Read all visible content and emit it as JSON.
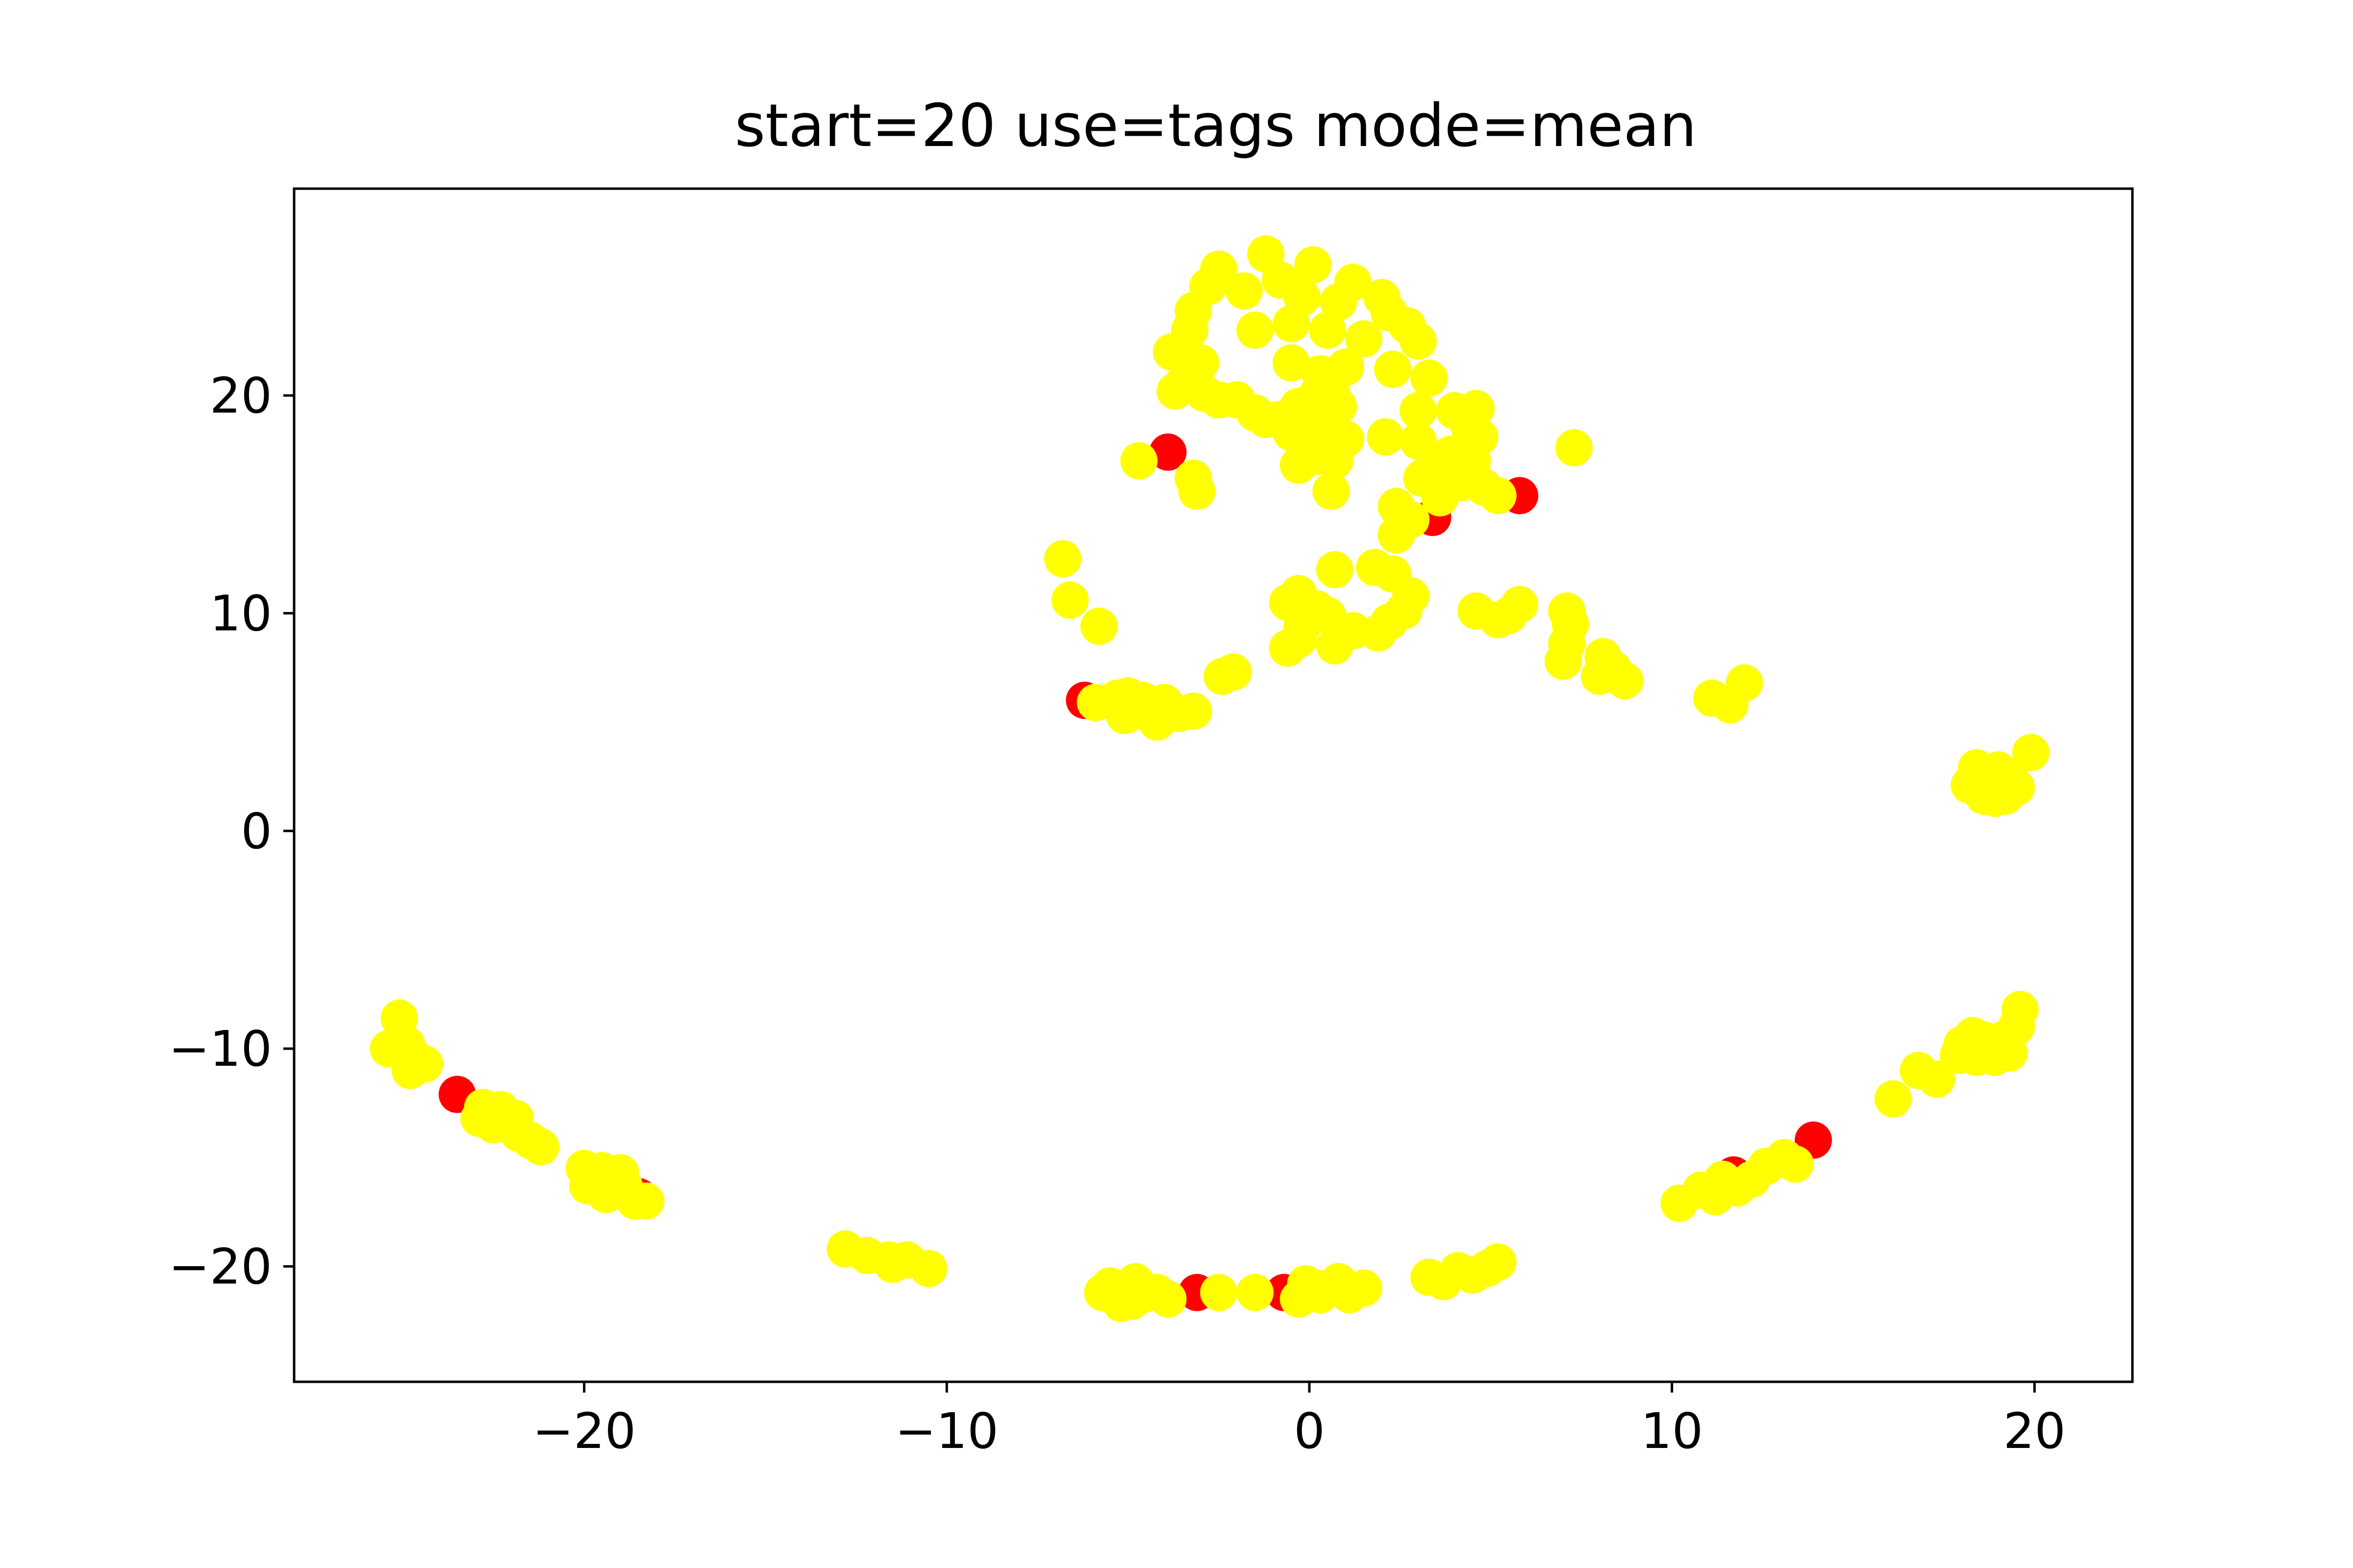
{
  "chart_data": {
    "type": "scatter",
    "title": "start=20 use=tags mode=mean",
    "xlabel": "",
    "ylabel": "",
    "xlim": [
      -28,
      22.7
    ],
    "ylim": [
      -25.3,
      29.5
    ],
    "xticks": [
      -20,
      -10,
      0,
      10,
      20
    ],
    "yticks": [
      -20,
      -10,
      0,
      10,
      20
    ],
    "xtick_labels": [
      "−20",
      "−10",
      "0",
      "10",
      "20"
    ],
    "ytick_labels": [
      "−20",
      "−10",
      "0",
      "10",
      "20"
    ],
    "grid": false,
    "colors": {
      "red": "#ff0000",
      "yellow": "#ffff00",
      "axes": "#000000"
    },
    "series": [
      {
        "color": "#ff0000",
        "points": [
          [
            -3.9,
            17.4
          ],
          [
            3.4,
            14.4
          ],
          [
            5.8,
            15.4
          ],
          [
            -6.2,
            6.0
          ],
          [
            -23.5,
            -12.1
          ],
          [
            -18.5,
            -16.8
          ],
          [
            -0.7,
            -21.2
          ],
          [
            -3.1,
            -21.2
          ],
          [
            11.7,
            -15.8
          ],
          [
            13.9,
            -14.2
          ]
        ]
      },
      {
        "color": "#ffff00",
        "points": [
          [
            -1.2,
            26.5
          ],
          [
            0.1,
            26.0
          ],
          [
            1.2,
            25.2
          ],
          [
            -2.5,
            25.8
          ],
          [
            -2.8,
            25.0
          ],
          [
            -1.8,
            24.8
          ],
          [
            -0.8,
            25.3
          ],
          [
            -0.2,
            24.5
          ],
          [
            0.8,
            24.3
          ],
          [
            2.0,
            24.5
          ],
          [
            2.2,
            23.8
          ],
          [
            -3.2,
            23.9
          ],
          [
            -3.3,
            23.0
          ],
          [
            -1.5,
            23.0
          ],
          [
            -0.5,
            23.3
          ],
          [
            0.5,
            23.0
          ],
          [
            1.5,
            22.6
          ],
          [
            2.7,
            23.2
          ],
          [
            3.0,
            22.5
          ],
          [
            -3.8,
            22.0
          ],
          [
            -3.0,
            21.5
          ],
          [
            -0.5,
            21.5
          ],
          [
            0.3,
            21.0
          ],
          [
            1.0,
            21.3
          ],
          [
            -3.5,
            20.5
          ],
          [
            -3.7,
            20.2
          ],
          [
            -2.9,
            20.1
          ],
          [
            -2.5,
            19.8
          ],
          [
            -2.0,
            19.8
          ],
          [
            -1.5,
            19.2
          ],
          [
            -1.2,
            18.9
          ],
          [
            -0.8,
            18.9
          ],
          [
            -0.5,
            18.3
          ],
          [
            0.0,
            18.5
          ],
          [
            0.5,
            18.7
          ],
          [
            0.8,
            19.5
          ],
          [
            0.2,
            20.0
          ],
          [
            0.6,
            20.3
          ],
          [
            -0.3,
            19.5
          ],
          [
            1.0,
            18.0
          ],
          [
            0.7,
            17.0
          ],
          [
            0.2,
            17.2
          ],
          [
            -0.3,
            16.8
          ],
          [
            0.6,
            15.6
          ],
          [
            2.3,
            21.2
          ],
          [
            3.3,
            20.8
          ],
          [
            3.0,
            19.3
          ],
          [
            2.1,
            18.1
          ],
          [
            3.0,
            17.9
          ],
          [
            4.0,
            19.3
          ],
          [
            4.6,
            19.4
          ],
          [
            4.4,
            18.6
          ],
          [
            4.7,
            18.1
          ],
          [
            3.9,
            17.3
          ],
          [
            4.5,
            17.0
          ],
          [
            3.4,
            16.8
          ],
          [
            3.8,
            16.3
          ],
          [
            3.1,
            16.2
          ],
          [
            4.2,
            16.0
          ],
          [
            3.6,
            15.3
          ],
          [
            2.4,
            14.9
          ],
          [
            5.2,
            15.4
          ],
          [
            4.8,
            15.8
          ],
          [
            2.4,
            13.6
          ],
          [
            2.8,
            14.3
          ],
          [
            7.3,
            17.6
          ],
          [
            -4.7,
            17.0
          ],
          [
            -3.2,
            16.2
          ],
          [
            -3.1,
            15.6
          ],
          [
            -6.8,
            12.5
          ],
          [
            -6.6,
            10.6
          ],
          [
            -5.8,
            9.4
          ],
          [
            0.7,
            12.0
          ],
          [
            1.8,
            12.1
          ],
          [
            2.3,
            11.8
          ],
          [
            2.8,
            10.8
          ],
          [
            2.6,
            10.1
          ],
          [
            2.2,
            9.6
          ],
          [
            1.9,
            9.1
          ],
          [
            -0.3,
            10.9
          ],
          [
            -0.6,
            10.5
          ],
          [
            0.2,
            10.2
          ],
          [
            0.5,
            9.9
          ],
          [
            -0.2,
            9.4
          ],
          [
            -0.6,
            8.4
          ],
          [
            -0.3,
            8.8
          ],
          [
            0.7,
            8.5
          ],
          [
            1.2,
            9.2
          ],
          [
            4.6,
            10.1
          ],
          [
            5.2,
            9.7
          ],
          [
            5.8,
            10.4
          ],
          [
            5.5,
            9.9
          ],
          [
            7.1,
            10.1
          ],
          [
            7.2,
            9.5
          ],
          [
            7.1,
            8.6
          ],
          [
            7.0,
            7.8
          ],
          [
            8.1,
            8.0
          ],
          [
            8.4,
            7.4
          ],
          [
            8.0,
            7.1
          ],
          [
            8.7,
            6.9
          ],
          [
            11.1,
            6.1
          ],
          [
            11.6,
            5.8
          ],
          [
            12.0,
            6.8
          ],
          [
            -2.1,
            7.3
          ],
          [
            -2.4,
            7.1
          ],
          [
            -5.9,
            5.9
          ],
          [
            -5.3,
            6.1
          ],
          [
            -5.0,
            6.2
          ],
          [
            -4.6,
            6.0
          ],
          [
            -4.3,
            5.8
          ],
          [
            -4.0,
            5.9
          ],
          [
            -4.7,
            5.5
          ],
          [
            -5.1,
            5.3
          ],
          [
            -3.6,
            5.4
          ],
          [
            -4.2,
            5.0
          ],
          [
            -3.2,
            5.5
          ],
          [
            18.4,
            2.9
          ],
          [
            18.7,
            2.5
          ],
          [
            19.0,
            2.8
          ],
          [
            19.3,
            2.5
          ],
          [
            18.5,
            1.9
          ],
          [
            18.9,
            1.5
          ],
          [
            19.2,
            1.6
          ],
          [
            19.5,
            2.0
          ],
          [
            18.2,
            2.1
          ],
          [
            18.6,
            1.6
          ],
          [
            19.9,
            3.6
          ],
          [
            -25.1,
            -8.6
          ],
          [
            -25.4,
            -10.0
          ],
          [
            -24.9,
            -9.8
          ],
          [
            -24.7,
            -10.4
          ],
          [
            -24.4,
            -10.7
          ],
          [
            -24.8,
            -11.0
          ],
          [
            -22.8,
            -12.7
          ],
          [
            -22.3,
            -12.8
          ],
          [
            -22.9,
            -13.2
          ],
          [
            -22.5,
            -13.5
          ],
          [
            -21.9,
            -13.2
          ],
          [
            -21.8,
            -13.9
          ],
          [
            -21.5,
            -14.2
          ],
          [
            -21.2,
            -14.5
          ],
          [
            -20.0,
            -15.5
          ],
          [
            -19.7,
            -15.9
          ],
          [
            -19.9,
            -16.3
          ],
          [
            -19.4,
            -16.7
          ],
          [
            -19.0,
            -15.7
          ],
          [
            -19.5,
            -15.6
          ],
          [
            -18.9,
            -16.3
          ],
          [
            -19.2,
            -16.5
          ],
          [
            -18.6,
            -17.0
          ],
          [
            -18.3,
            -17.0
          ],
          [
            -12.8,
            -19.2
          ],
          [
            -12.2,
            -19.5
          ],
          [
            -11.6,
            -19.7
          ],
          [
            -11.1,
            -19.7
          ],
          [
            -11.5,
            -19.9
          ],
          [
            -10.5,
            -20.1
          ],
          [
            -5.7,
            -21.2
          ],
          [
            -5.5,
            -20.9
          ],
          [
            -5.3,
            -21.4
          ],
          [
            -5.0,
            -21.1
          ],
          [
            -4.8,
            -20.7
          ],
          [
            -4.6,
            -21.3
          ],
          [
            -4.2,
            -21.2
          ],
          [
            -3.9,
            -21.5
          ],
          [
            -5.2,
            -21.7
          ],
          [
            -4.9,
            -21.6
          ],
          [
            -2.5,
            -21.2
          ],
          [
            -1.5,
            -21.2
          ],
          [
            -0.1,
            -20.8
          ],
          [
            0.3,
            -21.3
          ],
          [
            0.6,
            -21.0
          ],
          [
            0.8,
            -20.7
          ],
          [
            1.1,
            -21.3
          ],
          [
            1.5,
            -21.0
          ],
          [
            -0.3,
            -21.5
          ],
          [
            0.2,
            -21.0
          ],
          [
            3.3,
            -20.5
          ],
          [
            3.7,
            -20.7
          ],
          [
            4.1,
            -20.2
          ],
          [
            4.5,
            -20.4
          ],
          [
            4.9,
            -20.1
          ],
          [
            5.2,
            -19.8
          ],
          [
            10.2,
            -17.1
          ],
          [
            10.8,
            -16.5
          ],
          [
            11.2,
            -16.8
          ],
          [
            11.4,
            -16.0
          ],
          [
            11.8,
            -16.4
          ],
          [
            12.2,
            -16.0
          ],
          [
            12.6,
            -15.4
          ],
          [
            13.1,
            -15.0
          ],
          [
            13.4,
            -15.3
          ],
          [
            16.1,
            -12.3
          ],
          [
            16.8,
            -11.0
          ],
          [
            17.3,
            -11.4
          ],
          [
            17.9,
            -10.3
          ],
          [
            18.3,
            -9.4
          ],
          [
            18.6,
            -9.6
          ],
          [
            19.1,
            -9.6
          ],
          [
            19.3,
            -10.2
          ],
          [
            19.5,
            -9.0
          ],
          [
            19.6,
            -8.2
          ],
          [
            18.0,
            -9.8
          ],
          [
            18.4,
            -10.4
          ],
          [
            18.9,
            -10.4
          ]
        ]
      }
    ]
  }
}
